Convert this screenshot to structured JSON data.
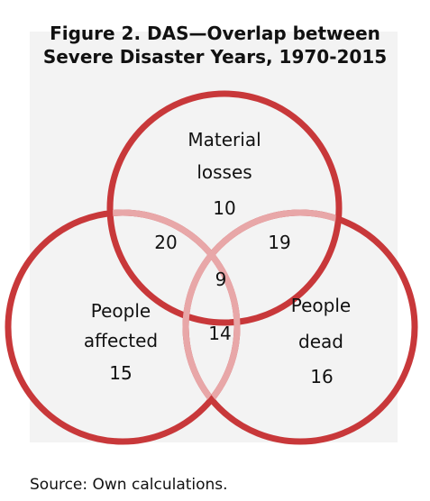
{
  "title": {
    "line1": "Figure 2. DAS—Overlap between",
    "line2": "Severe Disaster Years, 1970-2015"
  },
  "source": "Source: Own calculations.",
  "colors": {
    "circle_stroke": "#c8383a",
    "overlap_stroke": "#e8a7a8",
    "panel_background": "#f3f3f3"
  },
  "venn": {
    "sets": [
      {
        "id": "material",
        "label_lines": [
          "Material",
          "losses"
        ],
        "only": "10"
      },
      {
        "id": "affected",
        "label_lines": [
          "People",
          "affected"
        ],
        "only": "15"
      },
      {
        "id": "dead",
        "label_lines": [
          "People",
          "dead"
        ],
        "only": "16"
      }
    ],
    "intersections": {
      "material_affected": "20",
      "material_dead": "19",
      "affected_dead": "14",
      "all_three": "9"
    }
  }
}
